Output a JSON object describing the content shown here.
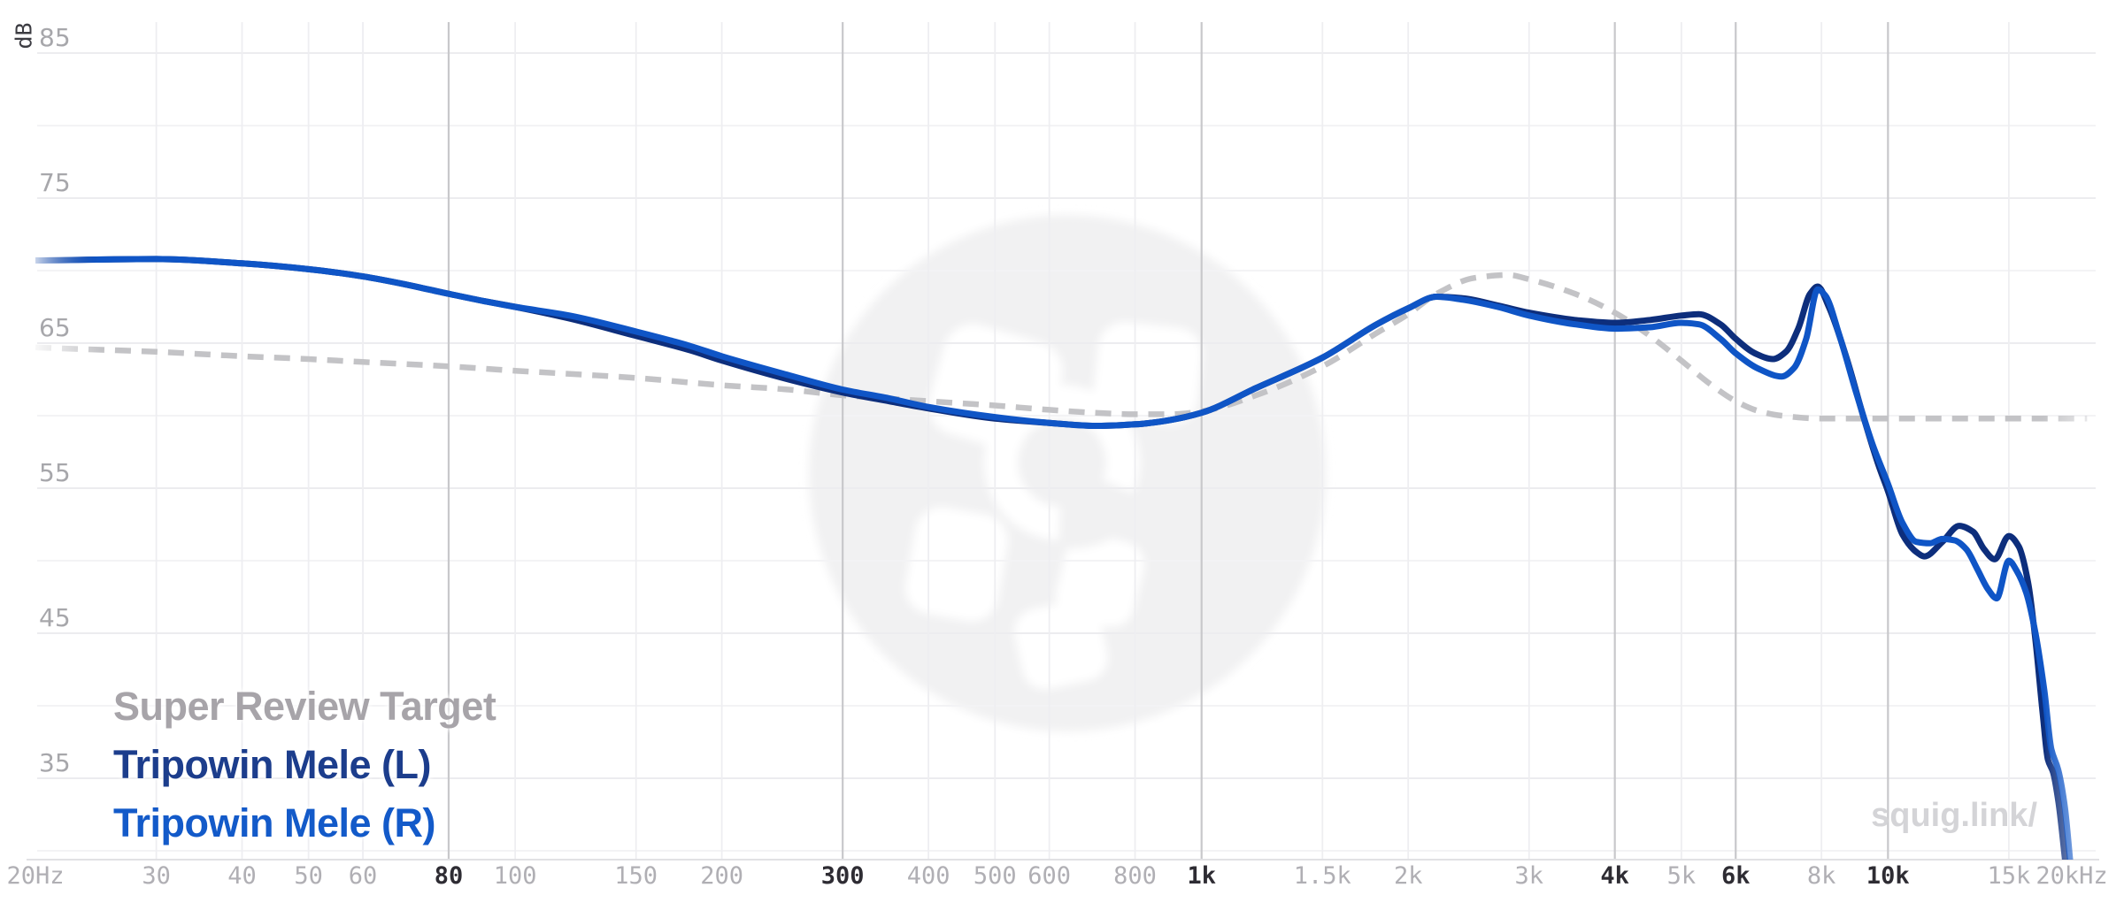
{
  "watermark": {
    "site_text": "squig.link/"
  },
  "legend": {
    "items": [
      {
        "label": "Super Review Target",
        "color": "#a7a4a9",
        "series": "target"
      },
      {
        "label": "Tripowin Mele (L)",
        "color": "#1c3d8c",
        "series": "mele_l"
      },
      {
        "label": "Tripowin Mele (R)",
        "color": "#135ac9",
        "series": "mele_r"
      }
    ]
  },
  "chart_data": {
    "type": "line",
    "x_scale": "log",
    "x_range": [
      20,
      20000
    ],
    "y_unit": "dB",
    "y_visible_range": [
      29,
      89
    ],
    "grid": true,
    "legend_position": "bottom-left",
    "colors": {
      "grid_v_light": "#eeeef1",
      "grid_v_dark": "#c8c8cb",
      "grid_h_light": "#f3f3f5",
      "grid_h_major": "#ececef",
      "axis_line": "#e1e1e4",
      "tick_light": "#b0afb4",
      "tick_dark": "#2e2c33",
      "y_tick": "#a7a7ab",
      "watermark_circle": "#f1f1f2"
    },
    "x_ticks": [
      {
        "f": 20,
        "label": "20Hz",
        "major": false,
        "line": false
      },
      {
        "f": 30,
        "label": "30",
        "major": false,
        "line": true
      },
      {
        "f": 40,
        "label": "40",
        "major": false,
        "line": true
      },
      {
        "f": 50,
        "label": "50",
        "major": false,
        "line": true
      },
      {
        "f": 60,
        "label": "60",
        "major": false,
        "line": true
      },
      {
        "f": 80,
        "label": "80",
        "major": true,
        "line": true
      },
      {
        "f": 100,
        "label": "100",
        "major": false,
        "line": true
      },
      {
        "f": 150,
        "label": "150",
        "major": false,
        "line": true
      },
      {
        "f": 200,
        "label": "200",
        "major": false,
        "line": true
      },
      {
        "f": 300,
        "label": "300",
        "major": true,
        "line": true
      },
      {
        "f": 400,
        "label": "400",
        "major": false,
        "line": true
      },
      {
        "f": 500,
        "label": "500",
        "major": false,
        "line": true
      },
      {
        "f": 600,
        "label": "600",
        "major": false,
        "line": true
      },
      {
        "f": 800,
        "label": "800",
        "major": false,
        "line": true
      },
      {
        "f": 1000,
        "label": "1k",
        "major": true,
        "line": true
      },
      {
        "f": 1500,
        "label": "1.5k",
        "major": false,
        "line": true
      },
      {
        "f": 2000,
        "label": "2k",
        "major": false,
        "line": true
      },
      {
        "f": 3000,
        "label": "3k",
        "major": false,
        "line": true
      },
      {
        "f": 4000,
        "label": "4k",
        "major": true,
        "line": true
      },
      {
        "f": 5000,
        "label": "5k",
        "major": false,
        "line": true
      },
      {
        "f": 6000,
        "label": "6k",
        "major": true,
        "line": true
      },
      {
        "f": 8000,
        "label": "8k",
        "major": false,
        "line": true
      },
      {
        "f": 10000,
        "label": "10k",
        "major": true,
        "line": true
      },
      {
        "f": 15000,
        "label": "15k",
        "major": false,
        "line": true
      },
      {
        "f": 20000,
        "label": "20kHz",
        "major": false,
        "line": false
      }
    ],
    "y_gridlines_db": [
      85,
      80,
      75,
      70,
      65,
      60,
      55,
      50,
      45,
      40,
      35,
      30
    ],
    "y_tick_labels": [
      {
        "db": 85,
        "label": "85"
      },
      {
        "db": 75,
        "label": "75"
      },
      {
        "db": 65,
        "label": "65"
      },
      {
        "db": 55,
        "label": "55"
      },
      {
        "db": 45,
        "label": "45"
      },
      {
        "db": 35,
        "label": "35"
      }
    ],
    "series": [
      {
        "name": "Super Review Target",
        "id": "target",
        "color": "#c3c3c6",
        "dashed": true,
        "width": 6.5,
        "points": [
          [
            20,
            64.7
          ],
          [
            30,
            64.4
          ],
          [
            40,
            64.1
          ],
          [
            50,
            63.9
          ],
          [
            60,
            63.7
          ],
          [
            80,
            63.4
          ],
          [
            100,
            63.1
          ],
          [
            150,
            62.6
          ],
          [
            200,
            62.1
          ],
          [
            250,
            61.8
          ],
          [
            300,
            61.4
          ],
          [
            400,
            61.0
          ],
          [
            500,
            60.7
          ],
          [
            600,
            60.4
          ],
          [
            700,
            60.2
          ],
          [
            800,
            60.1
          ],
          [
            900,
            60.1
          ],
          [
            1000,
            60.3
          ],
          [
            1200,
            61.4
          ],
          [
            1500,
            63.4
          ],
          [
            1800,
            65.7
          ],
          [
            2000,
            67.0
          ],
          [
            2200,
            68.4
          ],
          [
            2500,
            69.5
          ],
          [
            2800,
            69.7
          ],
          [
            3000,
            69.4
          ],
          [
            3500,
            68.4
          ],
          [
            4000,
            67.1
          ],
          [
            4500,
            65.5
          ],
          [
            5000,
            63.8
          ],
          [
            5500,
            62.2
          ],
          [
            6000,
            61.0
          ],
          [
            6500,
            60.3
          ],
          [
            7000,
            60.0
          ],
          [
            8000,
            59.8
          ],
          [
            10000,
            59.8
          ],
          [
            12000,
            59.8
          ],
          [
            15000,
            59.8
          ],
          [
            18000,
            59.8
          ],
          [
            19500,
            59.8
          ]
        ]
      },
      {
        "name": "Tripowin Mele (L)",
        "id": "mele_l",
        "color": "#0d2e7c",
        "dashed": false,
        "width": 7,
        "points": [
          [
            20,
            70.7
          ],
          [
            30,
            70.8
          ],
          [
            40,
            70.5
          ],
          [
            50,
            70.1
          ],
          [
            60,
            69.6
          ],
          [
            70,
            69.0
          ],
          [
            80,
            68.4
          ],
          [
            90,
            67.9
          ],
          [
            100,
            67.5
          ],
          [
            120,
            66.7
          ],
          [
            150,
            65.5
          ],
          [
            180,
            64.5
          ],
          [
            200,
            63.8
          ],
          [
            250,
            62.5
          ],
          [
            300,
            61.6
          ],
          [
            350,
            61.0
          ],
          [
            400,
            60.5
          ],
          [
            500,
            59.8
          ],
          [
            600,
            59.5
          ],
          [
            700,
            59.3
          ],
          [
            800,
            59.4
          ],
          [
            900,
            59.7
          ],
          [
            1000,
            60.2
          ],
          [
            1200,
            61.9
          ],
          [
            1500,
            64.0
          ],
          [
            1800,
            66.3
          ],
          [
            2000,
            67.4
          ],
          [
            2200,
            68.2
          ],
          [
            2400,
            68.1
          ],
          [
            2700,
            67.6
          ],
          [
            3000,
            67.1
          ],
          [
            3500,
            66.6
          ],
          [
            4000,
            66.4
          ],
          [
            4500,
            66.6
          ],
          [
            5000,
            66.9
          ],
          [
            5300,
            67.0
          ],
          [
            5700,
            66.3
          ],
          [
            6000,
            65.3
          ],
          [
            6400,
            64.3
          ],
          [
            6800,
            63.9
          ],
          [
            7100,
            64.4
          ],
          [
            7400,
            66.0
          ],
          [
            7700,
            68.4
          ],
          [
            7900,
            68.9
          ],
          [
            8200,
            67.5
          ],
          [
            8700,
            64.0
          ],
          [
            9200,
            60.0
          ],
          [
            9700,
            56.5
          ],
          [
            10000,
            54.8
          ],
          [
            10500,
            51.8
          ],
          [
            11000,
            50.6
          ],
          [
            11300,
            50.3
          ],
          [
            12000,
            51.3
          ],
          [
            12700,
            52.4
          ],
          [
            13300,
            52.0
          ],
          [
            13800,
            50.8
          ],
          [
            14300,
            50.1
          ],
          [
            15000,
            51.7
          ],
          [
            15500,
            51.0
          ],
          [
            16000,
            48.5
          ],
          [
            16400,
            44.5
          ],
          [
            16800,
            39.5
          ],
          [
            17100,
            36.3
          ],
          [
            17400,
            35.4
          ],
          [
            17700,
            33.5
          ],
          [
            18100,
            29.5
          ],
          [
            18400,
            26.5
          ]
        ]
      },
      {
        "name": "Tripowin Mele (R)",
        "id": "mele_r",
        "color": "#0f55c6",
        "dashed": false,
        "width": 7,
        "points": [
          [
            20,
            70.7
          ],
          [
            30,
            70.8
          ],
          [
            40,
            70.5
          ],
          [
            50,
            70.1
          ],
          [
            60,
            69.6
          ],
          [
            70,
            69.0
          ],
          [
            80,
            68.4
          ],
          [
            90,
            67.9
          ],
          [
            100,
            67.5
          ],
          [
            120,
            66.9
          ],
          [
            150,
            65.8
          ],
          [
            180,
            64.8
          ],
          [
            200,
            64.1
          ],
          [
            250,
            62.8
          ],
          [
            300,
            61.8
          ],
          [
            350,
            61.2
          ],
          [
            400,
            60.6
          ],
          [
            500,
            59.9
          ],
          [
            600,
            59.5
          ],
          [
            700,
            59.3
          ],
          [
            800,
            59.4
          ],
          [
            900,
            59.7
          ],
          [
            1000,
            60.2
          ],
          [
            1200,
            61.9
          ],
          [
            1500,
            64.0
          ],
          [
            1800,
            66.3
          ],
          [
            2000,
            67.4
          ],
          [
            2200,
            68.2
          ],
          [
            2400,
            68.0
          ],
          [
            2700,
            67.5
          ],
          [
            3000,
            66.9
          ],
          [
            3500,
            66.3
          ],
          [
            4000,
            66.0
          ],
          [
            4500,
            66.1
          ],
          [
            5000,
            66.4
          ],
          [
            5300,
            66.3
          ],
          [
            5700,
            65.3
          ],
          [
            6000,
            64.3
          ],
          [
            6500,
            63.2
          ],
          [
            7000,
            62.7
          ],
          [
            7300,
            63.3
          ],
          [
            7600,
            65.3
          ],
          [
            7900,
            68.7
          ],
          [
            8100,
            68.3
          ],
          [
            8500,
            65.5
          ],
          [
            9000,
            61.5
          ],
          [
            9500,
            58.0
          ],
          [
            10000,
            55.3
          ],
          [
            10500,
            52.6
          ],
          [
            11000,
            51.3
          ],
          [
            11500,
            51.2
          ],
          [
            12000,
            51.5
          ],
          [
            12500,
            51.4
          ],
          [
            13000,
            50.8
          ],
          [
            13500,
            49.4
          ],
          [
            14000,
            48.0
          ],
          [
            14400,
            47.4
          ],
          [
            15000,
            50.0
          ],
          [
            15400,
            49.3
          ],
          [
            15900,
            47.8
          ],
          [
            16400,
            45.0
          ],
          [
            16900,
            41.0
          ],
          [
            17300,
            37.0
          ],
          [
            17700,
            35.6
          ],
          [
            18100,
            33.0
          ],
          [
            18500,
            28.5
          ],
          [
            18900,
            25.0
          ]
        ]
      }
    ]
  }
}
